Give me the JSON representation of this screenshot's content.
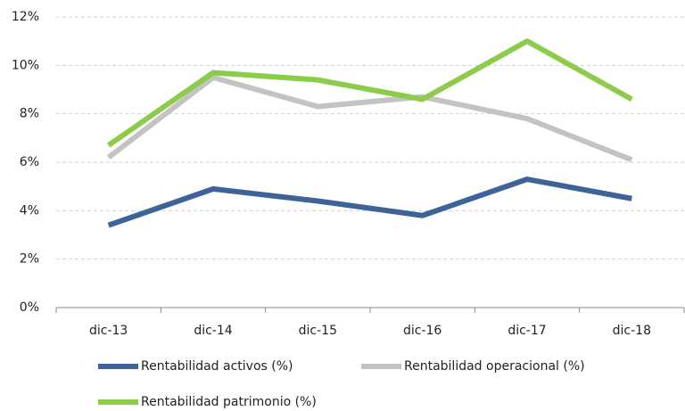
{
  "chart_data": {
    "type": "line",
    "categories": [
      "dic-13",
      "dic-14",
      "dic-15",
      "dic-16",
      "dic-17",
      "dic-18"
    ],
    "series": [
      {
        "name": "Rentabilidad activos (%)",
        "color": "#3e6398",
        "values": [
          3.4,
          4.9,
          4.4,
          3.8,
          5.3,
          4.5
        ]
      },
      {
        "name": "Rentabilidad operacional (%)",
        "color": "#c3c3c3",
        "values": [
          6.2,
          9.5,
          8.3,
          8.7,
          7.8,
          6.1
        ]
      },
      {
        "name": "Rentabilidad patrimonio (%)",
        "color": "#8ccc4a",
        "values": [
          6.7,
          9.7,
          9.4,
          8.6,
          11.0,
          8.6
        ]
      }
    ],
    "ylim": [
      0,
      12
    ],
    "yticks": [
      {
        "value": 0,
        "label": "0%"
      },
      {
        "value": 2,
        "label": "2%"
      },
      {
        "value": 4,
        "label": "4%"
      },
      {
        "value": 6,
        "label": "6%"
      },
      {
        "value": 8,
        "label": "8%"
      },
      {
        "value": 10,
        "label": "10%"
      },
      {
        "value": 12,
        "label": "12%"
      }
    ],
    "grid": true
  }
}
